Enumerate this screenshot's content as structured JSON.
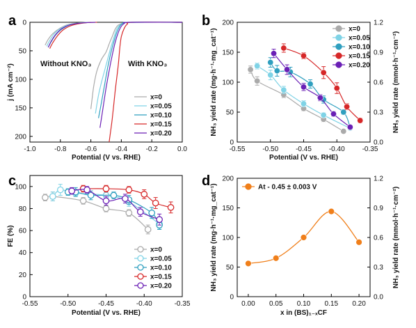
{
  "panel_labels": [
    "a",
    "b",
    "c",
    "d"
  ],
  "series_colors": {
    "x=0": "#aaaaaa",
    "x=0.05": "#7fd3e6",
    "x=0.10": "#2f9fbf",
    "x=0.15": "#d62728",
    "x=0.20": "#6a1fb5",
    "orange": "#f07f1a"
  },
  "chart_data": [
    {
      "panel": "a",
      "type": "line",
      "xlabel": "Potential (V vs. RHE)",
      "ylabel": "j (mA cm⁻²)",
      "xlim": [
        -1.0,
        0.0
      ],
      "ylim": [
        0,
        210
      ],
      "y_inverted": true,
      "x_ticks": [
        "-1.0",
        "-0.8",
        "-0.6",
        "-0.4",
        "-0.2",
        "0.0"
      ],
      "y_ticks": [
        "0",
        "50",
        "100",
        "150",
        "200"
      ],
      "annotations": [
        "Without KNO₃",
        "With KNO₃"
      ],
      "legend_position": "lower-right",
      "series": [
        {
          "name": "x=0",
          "with": [
            [
              -0.6,
              152
            ],
            [
              -0.59,
              130
            ],
            [
              -0.58,
              110
            ],
            [
              -0.56,
              85
            ],
            [
              -0.53,
              65
            ],
            [
              -0.5,
              52
            ],
            [
              -0.48,
              38
            ],
            [
              -0.46,
              25
            ],
            [
              -0.44,
              12
            ],
            [
              -0.42,
              5
            ],
            [
              -0.38,
              1
            ],
            [
              -0.3,
              0
            ],
            [
              0,
              0
            ]
          ],
          "without": [
            [
              -0.9,
              40
            ],
            [
              -0.88,
              30
            ],
            [
              -0.85,
              20
            ],
            [
              -0.8,
              10
            ],
            [
              -0.75,
              4
            ],
            [
              -0.68,
              1
            ],
            [
              -0.6,
              0
            ]
          ]
        },
        {
          "name": "x=0.05",
          "with": [
            [
              -0.57,
              160
            ],
            [
              -0.55,
              128
            ],
            [
              -0.53,
              105
            ],
            [
              -0.51,
              85
            ],
            [
              -0.49,
              65
            ],
            [
              -0.47,
              45
            ],
            [
              -0.45,
              28
            ],
            [
              -0.43,
              12
            ],
            [
              -0.41,
              5
            ],
            [
              -0.38,
              1
            ],
            [
              -0.3,
              0
            ],
            [
              0,
              0
            ]
          ],
          "without": [
            [
              -0.89,
              42
            ],
            [
              -0.87,
              32
            ],
            [
              -0.84,
              20
            ],
            [
              -0.8,
              11
            ],
            [
              -0.74,
              4
            ],
            [
              -0.66,
              1
            ],
            [
              -0.58,
              0
            ]
          ]
        },
        {
          "name": "x=0.10",
          "with": [
            [
              -0.55,
              168
            ],
            [
              -0.53,
              140
            ],
            [
              -0.51,
              110
            ],
            [
              -0.49,
              80
            ],
            [
              -0.47,
              55
            ],
            [
              -0.45,
              35
            ],
            [
              -0.43,
              18
            ],
            [
              -0.41,
              7
            ],
            [
              -0.39,
              2
            ],
            [
              -0.35,
              0
            ],
            [
              0,
              0
            ]
          ],
          "without": [
            [
              -0.88,
              44
            ],
            [
              -0.86,
              34
            ],
            [
              -0.83,
              22
            ],
            [
              -0.79,
              12
            ],
            [
              -0.73,
              4
            ],
            [
              -0.65,
              1
            ],
            [
              -0.57,
              0
            ]
          ]
        },
        {
          "name": "x=0.15",
          "with": [
            [
              -0.48,
              210
            ],
            [
              -0.46,
              170
            ],
            [
              -0.44,
              120
            ],
            [
              -0.42,
              75
            ],
            [
              -0.41,
              45
            ],
            [
              -0.4,
              25
            ],
            [
              -0.38,
              10
            ],
            [
              -0.36,
              3
            ],
            [
              -0.33,
              0
            ],
            [
              0,
              0
            ]
          ],
          "without": [
            [
              -0.87,
              46
            ],
            [
              -0.85,
              36
            ],
            [
              -0.82,
              24
            ],
            [
              -0.78,
              13
            ],
            [
              -0.72,
              5
            ],
            [
              -0.64,
              1
            ],
            [
              -0.56,
              0
            ]
          ]
        },
        {
          "name": "x=0.20",
          "with": [
            [
              -0.54,
              185
            ],
            [
              -0.52,
              150
            ],
            [
              -0.5,
              115
            ],
            [
              -0.48,
              85
            ],
            [
              -0.46,
              58
            ],
            [
              -0.44,
              35
            ],
            [
              -0.42,
              18
            ],
            [
              -0.4,
              7
            ],
            [
              -0.38,
              2
            ],
            [
              -0.35,
              0
            ],
            [
              0,
              0
            ]
          ],
          "without": [
            [
              -0.88,
              44
            ],
            [
              -0.86,
              33
            ],
            [
              -0.83,
              21
            ],
            [
              -0.79,
              11
            ],
            [
              -0.73,
              4
            ],
            [
              -0.65,
              1
            ],
            [
              -0.57,
              0
            ]
          ]
        }
      ]
    },
    {
      "panel": "b",
      "type": "scatter",
      "xlabel": "Potential (V vs. RHE)",
      "ylabel": "NH₃ yield rate (mg·h⁻¹·mg_cat⁻¹)",
      "y2label": "NH₃ yield rate (mmol·h⁻¹·cm⁻²)",
      "xlim": [
        -0.55,
        -0.35
      ],
      "ylim": [
        0,
        200
      ],
      "y2lim": [
        0,
        1.2
      ],
      "x_ticks": [
        "-0.55",
        "-0.50",
        "-0.45",
        "-0.40",
        "-0.35"
      ],
      "y_ticks": [
        "0",
        "50",
        "100",
        "150",
        "200"
      ],
      "y2_ticks": [
        "0.0",
        "0.3",
        "0.6",
        "0.9",
        "1.2"
      ],
      "legend_position": "top-right",
      "series": [
        {
          "name": "x=0",
          "x": [
            -0.53,
            -0.52,
            -0.48,
            -0.45,
            -0.42,
            -0.39
          ],
          "y": [
            121,
            102,
            79,
            56,
            38,
            18
          ],
          "err": [
            6,
            7,
            5,
            4,
            4,
            3
          ]
        },
        {
          "name": "x=0.05",
          "x": [
            -0.52,
            -0.5,
            -0.48,
            -0.45,
            -0.42,
            -0.38
          ],
          "y": [
            127,
            112,
            87,
            64,
            45,
            23
          ],
          "err": [
            5,
            8,
            6,
            5,
            4,
            3
          ]
        },
        {
          "name": "x=0.10",
          "x": [
            -0.5,
            -0.49,
            -0.47,
            -0.44,
            -0.42,
            -0.39,
            -0.38
          ],
          "y": [
            133,
            119,
            117,
            97,
            71,
            50,
            24
          ],
          "err": [
            8,
            9,
            8,
            7,
            6,
            4,
            3
          ]
        },
        {
          "name": "x=0.15",
          "x": [
            -0.48,
            -0.45,
            -0.42,
            -0.4,
            -0.385,
            -0.365
          ],
          "y": [
            157,
            144,
            116,
            90,
            59,
            36
          ],
          "err": [
            7,
            5,
            10,
            9,
            5,
            4
          ]
        },
        {
          "name": "x=0.20",
          "x": [
            -0.495,
            -0.475,
            -0.45,
            -0.425,
            -0.405,
            -0.38
          ],
          "y": [
            148,
            121,
            92,
            74,
            47,
            25
          ],
          "err": [
            7,
            8,
            6,
            5,
            4,
            3
          ]
        }
      ]
    },
    {
      "panel": "c",
      "type": "line",
      "xlabel": "Potential (V vs. RHE)",
      "ylabel": "FE (%)",
      "xlim": [
        -0.55,
        -0.35
      ],
      "ylim": [
        0,
        110
      ],
      "x_ticks": [
        "-0.55",
        "-0.50",
        "-0.45",
        "-0.40",
        "-0.35"
      ],
      "y_ticks": [
        "0",
        "20",
        "40",
        "60",
        "80",
        "100"
      ],
      "legend_position": "lower-right",
      "series": [
        {
          "name": "x=0",
          "x": [
            -0.53,
            -0.52,
            -0.48,
            -0.45,
            -0.42,
            -0.395
          ],
          "y": [
            90,
            91,
            87,
            80,
            76,
            61
          ],
          "err": [
            3,
            4,
            3,
            3,
            3,
            4
          ]
        },
        {
          "name": "x=0.05",
          "x": [
            -0.52,
            -0.51,
            -0.49,
            -0.45,
            -0.42,
            -0.38
          ],
          "y": [
            91,
            97,
            94,
            92,
            86,
            66
          ],
          "err": [
            4,
            5,
            3,
            3,
            4,
            4
          ]
        },
        {
          "name": "x=0.10",
          "x": [
            -0.5,
            -0.49,
            -0.47,
            -0.44,
            -0.42,
            -0.39,
            -0.38
          ],
          "y": [
            95,
            95,
            92,
            92,
            88,
            76,
            65
          ],
          "err": [
            3,
            4,
            4,
            3,
            4,
            5,
            4
          ]
        },
        {
          "name": "x=0.15",
          "x": [
            -0.48,
            -0.45,
            -0.42,
            -0.4,
            -0.385,
            -0.365
          ],
          "y": [
            98,
            98,
            97,
            93,
            85,
            81
          ],
          "err": [
            3,
            3,
            3,
            4,
            5,
            5
          ]
        },
        {
          "name": "x=0.20",
          "x": [
            -0.495,
            -0.475,
            -0.45,
            -0.425,
            -0.405,
            -0.38
          ],
          "y": [
            96,
            97,
            87,
            89,
            77,
            70
          ],
          "err": [
            3,
            3,
            4,
            4,
            4,
            5
          ]
        }
      ]
    },
    {
      "panel": "d",
      "type": "line",
      "xlabel": "x in (BS)₁₋ₓCF",
      "ylabel": "NH₃ yield rate (mg·h⁻¹·mg_cat⁻¹)",
      "y2label": "NH₃ yield rate (mmol·h⁻¹·cm⁻²)",
      "xlim": [
        -0.02,
        0.22
      ],
      "ylim": [
        0,
        200
      ],
      "y2lim": [
        0,
        1.2
      ],
      "x_ticks": [
        "0.00",
        "0.05",
        "0.10",
        "0.15",
        "0.20"
      ],
      "y_ticks": [
        "0",
        "50",
        "100",
        "150",
        "200"
      ],
      "y2_ticks": [
        "0.0",
        "0.3",
        "0.6",
        "0.9",
        "1.2"
      ],
      "legend_position": "top-left",
      "series": [
        {
          "name": "At - 0.45 ± 0.003 V",
          "x": [
            0.0,
            0.05,
            0.1,
            0.15,
            0.2
          ],
          "y": [
            56,
            65,
            100,
            144,
            92
          ]
        }
      ]
    }
  ]
}
